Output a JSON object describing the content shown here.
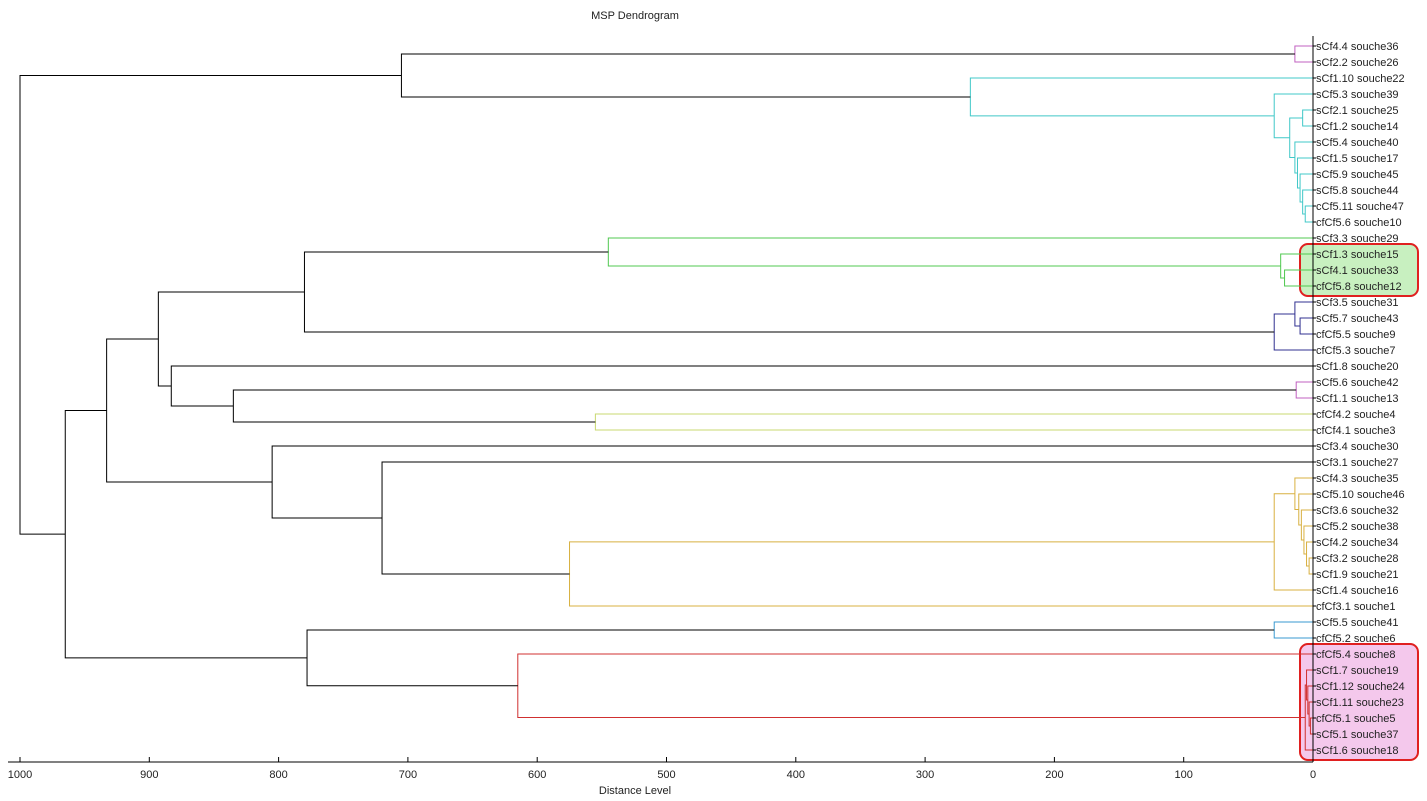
{
  "chart_data": {
    "type": "dendrogram",
    "title": "MSP Dendrogram",
    "xlabel": "Distance Level",
    "ylabel": "",
    "xlim": [
      1000,
      0
    ],
    "xticks": [
      1000,
      900,
      800,
      700,
      600,
      500,
      400,
      300,
      200,
      100,
      0
    ],
    "leaves": [
      "sCf4.4 souche36",
      "sCf2.2 souche26",
      "sCf1.10 souche22",
      "sCf5.3 souche39",
      "sCf2.1 souche25",
      "sCf1.2 souche14",
      "sCf5.4 souche40",
      "sCf1.5 souche17",
      "sCf5.9 souche45",
      "sCf5.8 souche44",
      "cCf5.11 souche47",
      "cfCf5.6 souche10",
      "sCf3.3 souche29",
      "sCf1.3 souche15",
      "sCf4.1 souche33",
      "cfCf5.8 souche12",
      "sCf3.5 souche31",
      "sCf5.7 souche43",
      "cfCf5.5 souche9",
      "cfCf5.3 souche7",
      "sCf1.8 souche20",
      "sCf5.6 souche42",
      "sCf1.1 souche13",
      "cfCf4.2 souche4",
      "cfCf4.1 souche3",
      "sCf3.4 souche30",
      "sCf3.1 souche27",
      "sCf4.3 souche35",
      "sCf5.10 souche46",
      "sCf3.6 souche32",
      "sCf5.2 souche38",
      "sCf4.2 souche34",
      "sCf3.2 souche28",
      "sCf1.9 souche21",
      "sCf1.4 souche16",
      "cfCf3.1 souche1",
      "sCf5.5 souche41",
      "cfCf5.2 souche6",
      "cfCf5.4 souche8",
      "sCf1.7 souche19",
      "sCf1.12 souche24",
      "sCf1.11 souche23",
      "cfCf5.1 souche5",
      "sCf5.1 souche37",
      "sCf1.6 souche18"
    ],
    "colors": {
      "magenta": "#c060c0",
      "cyan": "#40c8c8",
      "green": "#50c850",
      "navy": "#303090",
      "yellowgreen": "#c8d870",
      "orange": "#d8b040",
      "blue": "#3a9ad0",
      "red": "#d03030",
      "black": "#000000",
      "highlight_border": "#e02020",
      "green_fill": "#c8f0c0",
      "pink_fill": "#f4c8ec"
    },
    "merges": [
      {
        "id": "A1",
        "left": "L0",
        "right": "L1",
        "height": 14,
        "color": "magenta"
      },
      {
        "id": "C1",
        "left": "L10",
        "right": "L11",
        "height": 6,
        "color": "cyan"
      },
      {
        "id": "C2",
        "left": "L9",
        "right": "C1",
        "height": 8,
        "color": "cyan"
      },
      {
        "id": "C3",
        "left": "L8",
        "right": "C2",
        "height": 10,
        "color": "cyan"
      },
      {
        "id": "C4",
        "left": "L7",
        "right": "C3",
        "height": 12,
        "color": "cyan"
      },
      {
        "id": "C5",
        "left": "L6",
        "right": "C4",
        "height": 14,
        "color": "cyan"
      },
      {
        "id": "C6",
        "left": "L4",
        "right": "L5",
        "height": 8,
        "color": "cyan"
      },
      {
        "id": "C7",
        "left": "C6",
        "right": "C5",
        "height": 18,
        "color": "cyan"
      },
      {
        "id": "C8",
        "left": "L3",
        "right": "C7",
        "height": 30,
        "color": "cyan"
      },
      {
        "id": "C9",
        "left": "L2",
        "right": "C8",
        "height": 265,
        "color": "cyan"
      },
      {
        "id": "A2",
        "left": "A1",
        "right": "C9",
        "height": 705,
        "color": "black"
      },
      {
        "id": "G1",
        "left": "L14",
        "right": "L15",
        "height": 22,
        "color": "green"
      },
      {
        "id": "G2",
        "left": "L13",
        "right": "G1",
        "height": 25,
        "color": "green"
      },
      {
        "id": "G3",
        "left": "L12",
        "right": "G2",
        "height": 545,
        "color": "green"
      },
      {
        "id": "N1",
        "left": "L17",
        "right": "L18",
        "height": 10,
        "color": "navy"
      },
      {
        "id": "N2",
        "left": "L16",
        "right": "N1",
        "height": 14,
        "color": "navy"
      },
      {
        "id": "N3",
        "left": "N2",
        "right": "L19",
        "height": 30,
        "color": "navy"
      },
      {
        "id": "B1",
        "left": "G3",
        "right": "N3",
        "height": 780,
        "color": "black"
      },
      {
        "id": "P1",
        "left": "L21",
        "right": "L22",
        "height": 13,
        "color": "magenta"
      },
      {
        "id": "Y1",
        "left": "L23",
        "right": "L24",
        "height": 555,
        "color": "yellowgreen"
      },
      {
        "id": "B2",
        "left": "P1",
        "right": "Y1",
        "height": 835,
        "color": "black"
      },
      {
        "id": "B3",
        "left": "L20",
        "right": "B2",
        "height": 883,
        "color": "black"
      },
      {
        "id": "B4",
        "left": "B1",
        "right": "B3",
        "height": 893,
        "color": "black"
      },
      {
        "id": "O1",
        "left": "L32",
        "right": "L33",
        "height": 3,
        "color": "orange"
      },
      {
        "id": "O2",
        "left": "L31",
        "right": "O1",
        "height": 5,
        "color": "orange"
      },
      {
        "id": "O3",
        "left": "L30",
        "right": "O2",
        "height": 7,
        "color": "orange"
      },
      {
        "id": "O4",
        "left": "L29",
        "right": "O3",
        "height": 9,
        "color": "orange"
      },
      {
        "id": "O5",
        "left": "L28",
        "right": "O4",
        "height": 11,
        "color": "orange"
      },
      {
        "id": "O6",
        "left": "L27",
        "right": "O5",
        "height": 14,
        "color": "orange"
      },
      {
        "id": "O7",
        "left": "O6",
        "right": "L34",
        "height": 30,
        "color": "orange"
      },
      {
        "id": "O8",
        "left": "O7",
        "right": "L35",
        "height": 575,
        "color": "orange"
      },
      {
        "id": "B5",
        "left": "L26",
        "right": "O8",
        "height": 720,
        "color": "black"
      },
      {
        "id": "B6",
        "left": "L25",
        "right": "B5",
        "height": 805,
        "color": "black"
      },
      {
        "id": "B7",
        "left": "B4",
        "right": "B6",
        "height": 933,
        "color": "black"
      },
      {
        "id": "U1",
        "left": "L36",
        "right": "L37",
        "height": 30,
        "color": "blue"
      },
      {
        "id": "R1",
        "left": "L42",
        "right": "L43",
        "height": 2,
        "color": "red"
      },
      {
        "id": "R2",
        "left": "L41",
        "right": "R1",
        "height": 3,
        "color": "red"
      },
      {
        "id": "R3",
        "left": "L40",
        "right": "R2",
        "height": 4,
        "color": "red"
      },
      {
        "id": "R4",
        "left": "L39",
        "right": "R3",
        "height": 5,
        "color": "red"
      },
      {
        "id": "R5",
        "left": "R4",
        "right": "L44",
        "height": 6,
        "color": "red"
      },
      {
        "id": "R6",
        "left": "L38",
        "right": "R5",
        "height": 615,
        "color": "red"
      },
      {
        "id": "B8",
        "left": "U1",
        "right": "R6",
        "height": 778,
        "color": "black"
      },
      {
        "id": "B9",
        "left": "B7",
        "right": "B8",
        "height": 965,
        "color": "black"
      },
      {
        "id": "ROOT",
        "left": "A2",
        "right": "B9",
        "height": 1000,
        "color": "black"
      }
    ],
    "highlights": [
      {
        "first_leaf": 13,
        "last_leaf": 15,
        "fill": "green_fill"
      },
      {
        "first_leaf": 38,
        "last_leaf": 44,
        "fill": "pink_fill"
      }
    ]
  }
}
